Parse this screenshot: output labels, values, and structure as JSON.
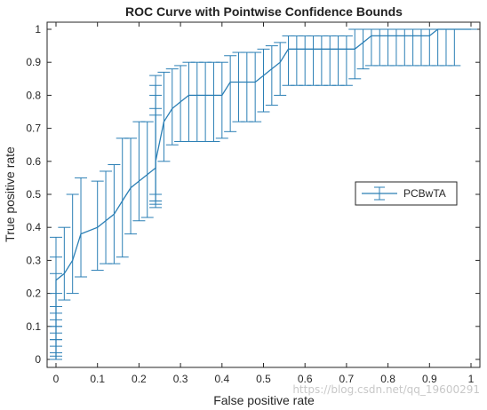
{
  "chart_data": {
    "type": "line",
    "title": "ROC Curve with Pointwise Confidence Bounds",
    "xlabel": "False positive rate",
    "ylabel": "True positive rate",
    "xlim": [
      0,
      1
    ],
    "ylim": [
      0,
      1
    ],
    "xticks": [
      0,
      0.1,
      0.2,
      0.3,
      0.4,
      0.5,
      0.6,
      0.7,
      0.8,
      0.9,
      1
    ],
    "xtick_labels": [
      "0",
      "0.1",
      "0.2",
      "0.3",
      "0.4",
      "0.5",
      "0.6",
      "0.7",
      "0.8",
      "0.9",
      "1"
    ],
    "yticks": [
      0,
      0.1,
      0.2,
      0.3,
      0.4,
      0.5,
      0.6,
      0.7,
      0.8,
      0.9,
      1
    ],
    "ytick_labels": [
      "0",
      "0.1",
      "0.2",
      "0.3",
      "0.4",
      "0.5",
      "0.6",
      "0.7",
      "0.8",
      "0.9",
      "1"
    ],
    "grid": false,
    "legend_position": "right",
    "color": "#2b7fb5",
    "series": [
      {
        "name": "PCBwTA",
        "x": [
          0,
          0,
          0,
          0,
          0,
          0,
          0,
          0,
          0,
          0,
          0,
          0.02,
          0.04,
          0.06,
          0.1,
          0.12,
          0.14,
          0.16,
          0.18,
          0.2,
          0.22,
          0.24,
          0.24,
          0.24,
          0.24,
          0.24,
          0.26,
          0.28,
          0.3,
          0.32,
          0.34,
          0.36,
          0.38,
          0.4,
          0.42,
          0.44,
          0.46,
          0.48,
          0.5,
          0.52,
          0.54,
          0.56,
          0.58,
          0.6,
          0.62,
          0.64,
          0.66,
          0.68,
          0.7,
          0.72,
          0.74,
          0.76,
          0.78,
          0.8,
          0.82,
          0.84,
          0.86,
          0.88,
          0.9,
          0.92,
          0.94,
          0.96,
          1
        ],
        "y": [
          0,
          0.02,
          0.04,
          0.06,
          0.08,
          0.1,
          0.12,
          0.14,
          0.16,
          0.2,
          0.24,
          0.26,
          0.3,
          0.38,
          0.4,
          0.42,
          0.44,
          0.48,
          0.52,
          0.54,
          0.56,
          0.58,
          0.58,
          0.58,
          0.6,
          0.6,
          0.72,
          0.76,
          0.78,
          0.8,
          0.8,
          0.8,
          0.8,
          0.8,
          0.84,
          0.84,
          0.84,
          0.84,
          0.86,
          0.88,
          0.9,
          0.94,
          0.94,
          0.94,
          0.94,
          0.94,
          0.94,
          0.94,
          0.94,
          0.94,
          0.96,
          0.98,
          0.98,
          0.98,
          0.98,
          0.98,
          0.98,
          0.98,
          0.98,
          1,
          1,
          1,
          1
        ],
        "lower": [
          0,
          0,
          0,
          0,
          0,
          0,
          0,
          0.01,
          0.02,
          0.06,
          0.1,
          0.18,
          0.2,
          0.25,
          0.27,
          0.29,
          0.29,
          0.31,
          0.38,
          0.42,
          0.43,
          0.46,
          0.47,
          0.48,
          0.48,
          0.5,
          0.6,
          0.65,
          0.66,
          0.66,
          0.66,
          0.66,
          0.66,
          0.67,
          0.69,
          0.72,
          0.72,
          0.72,
          0.75,
          0.77,
          0.8,
          0.83,
          0.83,
          0.83,
          0.83,
          0.83,
          0.83,
          0.83,
          0.83,
          0.85,
          0.88,
          0.89,
          0.89,
          0.89,
          0.89,
          0.89,
          0.89,
          0.89,
          0.89,
          0.89,
          0.89,
          0.89,
          1
        ],
        "upper": [
          0.04,
          0.06,
          0.08,
          0.1,
          0.12,
          0.14,
          0.16,
          0.2,
          0.26,
          0.31,
          0.37,
          0.4,
          0.5,
          0.55,
          0.54,
          0.57,
          0.59,
          0.67,
          0.67,
          0.72,
          0.72,
          0.74,
          0.76,
          0.8,
          0.83,
          0.86,
          0.87,
          0.88,
          0.89,
          0.9,
          0.9,
          0.9,
          0.9,
          0.9,
          0.92,
          0.93,
          0.93,
          0.93,
          0.94,
          0.95,
          0.96,
          0.98,
          0.98,
          0.98,
          0.98,
          0.98,
          0.98,
          0.98,
          0.98,
          1,
          1,
          1,
          1,
          1,
          1,
          1,
          1,
          1,
          1,
          1,
          1,
          1,
          1
        ]
      }
    ]
  },
  "watermark": "https://blog.csdn.net/qq_19600291"
}
